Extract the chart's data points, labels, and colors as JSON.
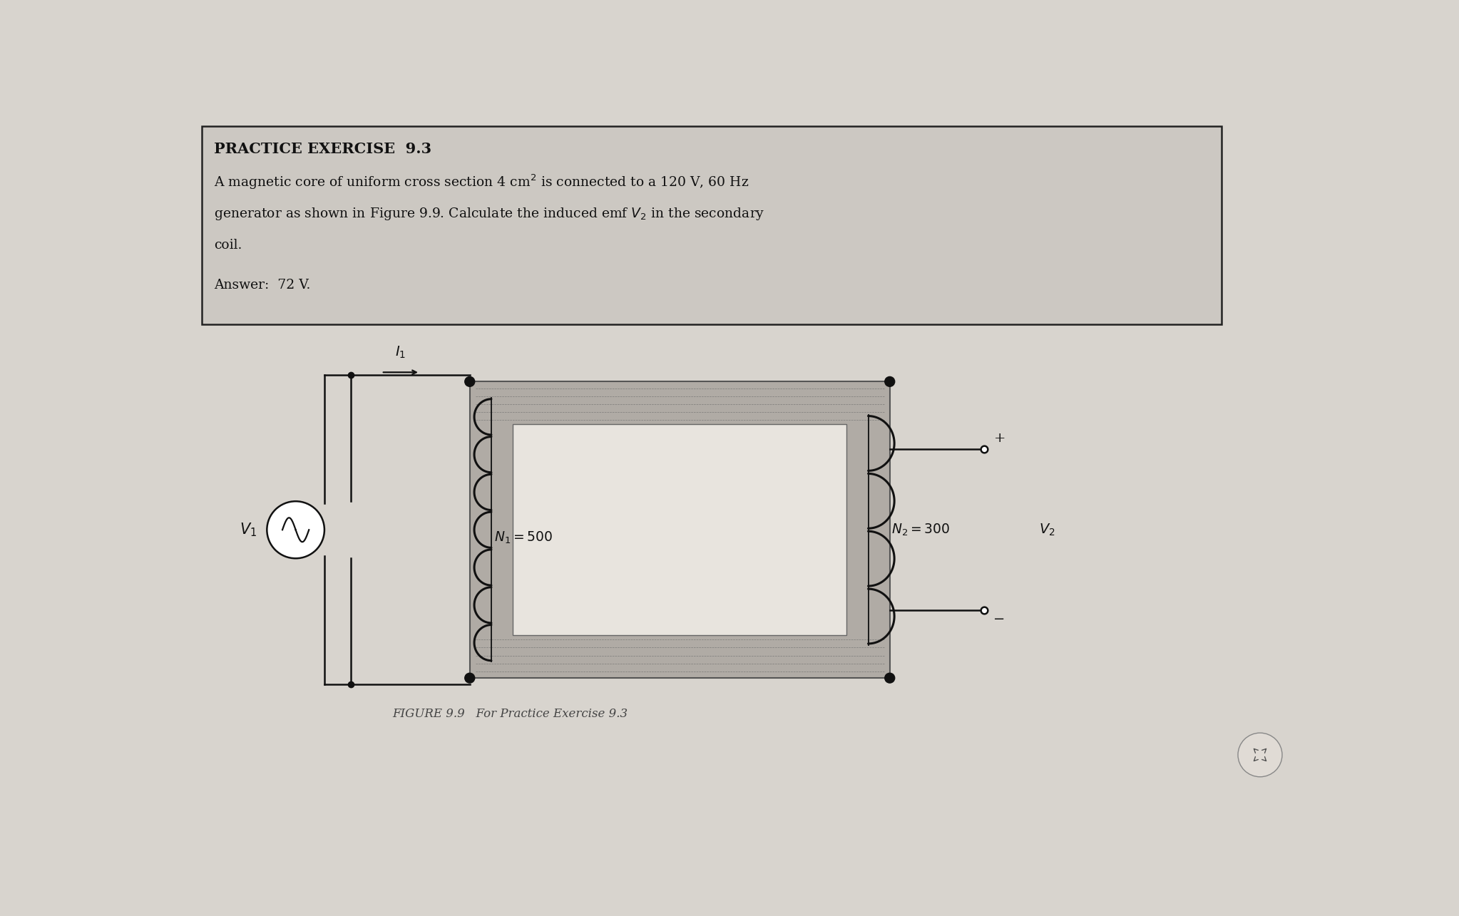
{
  "bg_color": "#ccc8c2",
  "white_bg": "#ffffff",
  "inner_bg": "#e8e4de",
  "title": "PRACTICE EXERCISE  9.3",
  "core_color": "#b0aba5",
  "core_edge": "#555555",
  "wire_color": "#111111",
  "coil_color": "#111111",
  "N1_label": "N_1 = 500",
  "N2_label": "N_2 = 300",
  "V2_label": "V_2",
  "V1_label": "V_1",
  "I1_label": "I_1",
  "figure_caption": "FIGURE 9.9   For Practice Exercise 9.3",
  "page_bg": "#d8d4ce"
}
